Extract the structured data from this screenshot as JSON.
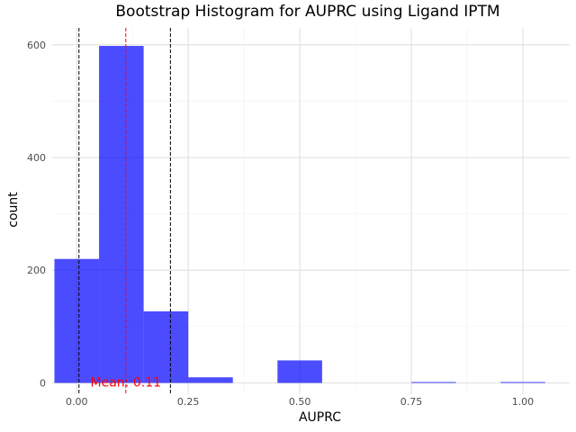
{
  "chart_data": {
    "type": "bar",
    "title": "Bootstrap Histogram for AUPRC using Ligand IPTM",
    "xlabel": "AUPRC",
    "ylabel": "count",
    "xlim": [
      -0.055,
      1.105
    ],
    "ylim": [
      -20,
      630
    ],
    "x_ticks": [
      {
        "value": 0.0,
        "label": "0.00"
      },
      {
        "value": 0.25,
        "label": "0.25"
      },
      {
        "value": 0.5,
        "label": "0.50"
      },
      {
        "value": 0.75,
        "label": "0.75"
      },
      {
        "value": 1.0,
        "label": "1.00"
      }
    ],
    "y_ticks": [
      {
        "value": 0,
        "label": "0"
      },
      {
        "value": 200,
        "label": "200"
      },
      {
        "value": 400,
        "label": "400"
      },
      {
        "value": 600,
        "label": "600"
      }
    ],
    "bins": [
      {
        "x0": -0.05,
        "x1": 0.05,
        "count": 220
      },
      {
        "x0": 0.05,
        "x1": 0.15,
        "count": 598
      },
      {
        "x0": 0.15,
        "x1": 0.25,
        "count": 127
      },
      {
        "x0": 0.25,
        "x1": 0.35,
        "count": 10
      },
      {
        "x0": 0.35,
        "x1": 0.45,
        "count": 0
      },
      {
        "x0": 0.45,
        "x1": 0.55,
        "count": 40
      },
      {
        "x0": 0.55,
        "x1": 0.65,
        "count": 0
      },
      {
        "x0": 0.65,
        "x1": 0.75,
        "count": 0
      },
      {
        "x0": 0.75,
        "x1": 0.85,
        "count": 1
      },
      {
        "x0": 0.85,
        "x1": 0.95,
        "count": 0
      },
      {
        "x0": 0.95,
        "x1": 1.05,
        "count": 1
      }
    ],
    "bar_color": "#0000FF",
    "bar_opacity": 0.7,
    "mean": {
      "value": 0.11,
      "color": "#FF0000",
      "label": "Mean: 0.11"
    },
    "ci_lines": [
      {
        "value": 0.005,
        "color": "#000000"
      },
      {
        "value": 0.21,
        "color": "#000000"
      }
    ],
    "grid": true,
    "legend": "none"
  }
}
